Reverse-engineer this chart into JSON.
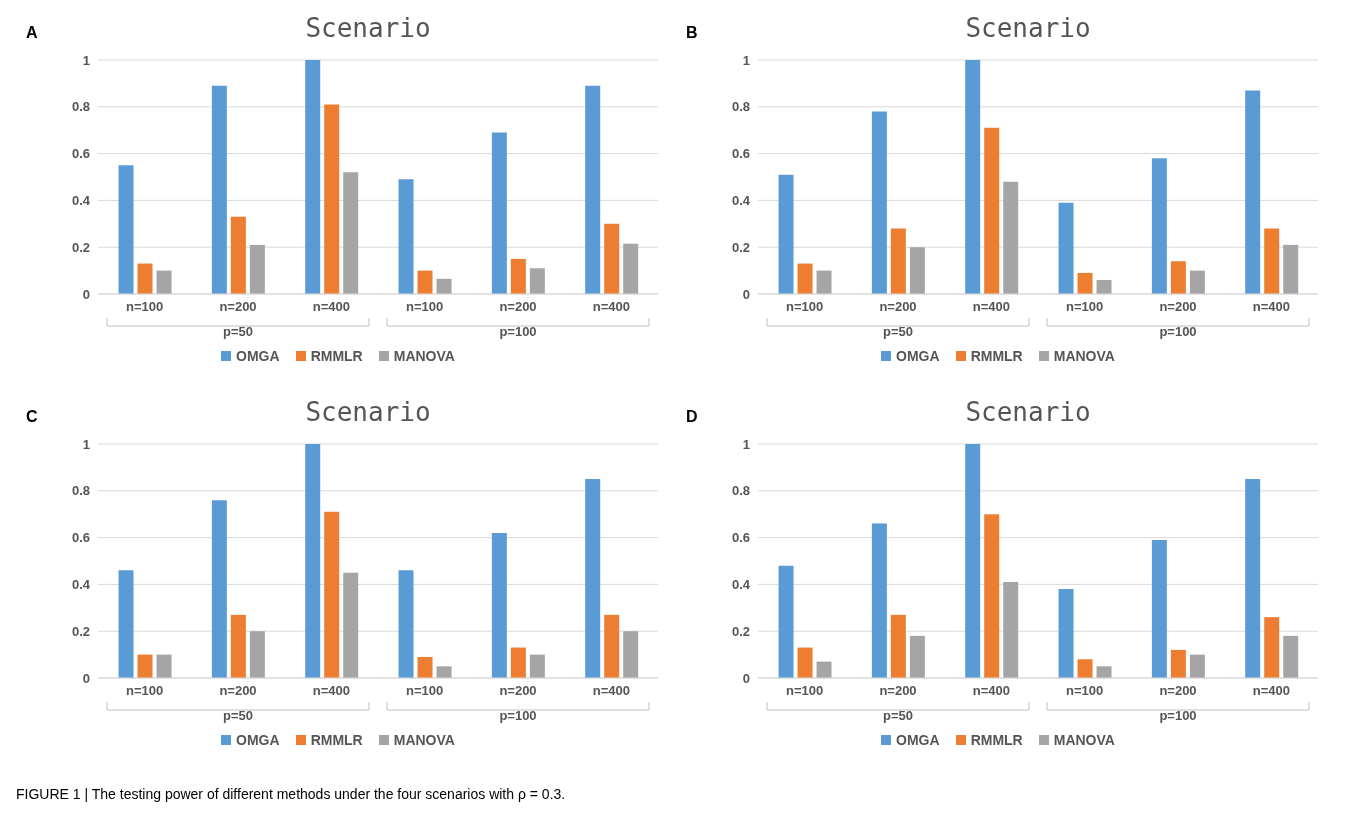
{
  "chart_data": [
    {
      "type": "bar",
      "title": "Scenario",
      "categories": [
        "n=100",
        "n=200",
        "n=400",
        "n=100",
        "n=200",
        "n=400"
      ],
      "ylim": [
        0,
        1
      ],
      "yticks": [
        0,
        0.2,
        0.4,
        0.6,
        0.8,
        1
      ],
      "grid": "y",
      "legend": "bottom",
      "annotations": [
        "A",
        "p=50",
        "p=100"
      ],
      "series": [
        {
          "name": "OMGA",
          "color": "#5b9bd5",
          "values": [
            0.55,
            0.89,
            1.0,
            0.49,
            0.69,
            0.89
          ]
        },
        {
          "name": "RMMLR",
          "color": "#ed7d31",
          "values": [
            0.13,
            0.33,
            0.81,
            0.1,
            0.15,
            0.3
          ]
        },
        {
          "name": "MANOVA",
          "color": "#a5a5a5",
          "values": [
            0.1,
            0.21,
            0.52,
            0.065,
            0.11,
            0.215
          ]
        }
      ]
    },
    {
      "type": "bar",
      "title": "Scenario",
      "categories": [
        "n=100",
        "n=200",
        "n=400",
        "n=100",
        "n=200",
        "n=400"
      ],
      "ylim": [
        0,
        1
      ],
      "yticks": [
        0,
        0.2,
        0.4,
        0.6,
        0.8,
        1
      ],
      "grid": "y",
      "legend": "bottom",
      "annotations": [
        "B",
        "p=50",
        "p=100"
      ],
      "series": [
        {
          "name": "OMGA",
          "color": "#5b9bd5",
          "values": [
            0.51,
            0.78,
            1.0,
            0.39,
            0.58,
            0.87
          ]
        },
        {
          "name": "RMMLR",
          "color": "#ed7d31",
          "values": [
            0.13,
            0.28,
            0.71,
            0.09,
            0.14,
            0.28
          ]
        },
        {
          "name": "MANOVA",
          "color": "#a5a5a5",
          "values": [
            0.1,
            0.2,
            0.48,
            0.06,
            0.1,
            0.21
          ]
        }
      ]
    },
    {
      "type": "bar",
      "title": "Scenario",
      "categories": [
        "n=100",
        "n=200",
        "n=400",
        "n=100",
        "n=200",
        "n=400"
      ],
      "ylim": [
        0,
        1
      ],
      "yticks": [
        0,
        0.2,
        0.4,
        0.6,
        0.8,
        1
      ],
      "grid": "y",
      "legend": "bottom",
      "annotations": [
        "C",
        "p=50",
        "p=100"
      ],
      "series": [
        {
          "name": "OMGA",
          "color": "#5b9bd5",
          "values": [
            0.46,
            0.76,
            1.0,
            0.46,
            0.62,
            0.85
          ]
        },
        {
          "name": "RMMLR",
          "color": "#ed7d31",
          "values": [
            0.1,
            0.27,
            0.71,
            0.09,
            0.13,
            0.27
          ]
        },
        {
          "name": "MANOVA",
          "color": "#a5a5a5",
          "values": [
            0.1,
            0.2,
            0.45,
            0.05,
            0.1,
            0.2
          ]
        }
      ]
    },
    {
      "type": "bar",
      "title": "Scenario",
      "categories": [
        "n=100",
        "n=200",
        "n=400",
        "n=100",
        "n=200",
        "n=400"
      ],
      "ylim": [
        0,
        1
      ],
      "yticks": [
        0,
        0.2,
        0.4,
        0.6,
        0.8,
        1
      ],
      "grid": "y",
      "legend": "bottom",
      "annotations": [
        "D",
        "p=50",
        "p=100",
        "FIGURE 1 | The testing power of different methods under the four scenarios with ρ = 0.3."
      ],
      "series": [
        {
          "name": "OMGA",
          "color": "#5b9bd5",
          "values": [
            0.48,
            0.66,
            1.0,
            0.38,
            0.59,
            0.85
          ]
        },
        {
          "name": "RMMLR",
          "color": "#ed7d31",
          "values": [
            0.13,
            0.27,
            0.7,
            0.08,
            0.12,
            0.26
          ]
        },
        {
          "name": "MANOVA",
          "color": "#a5a5a5",
          "values": [
            0.07,
            0.18,
            0.41,
            0.05,
            0.1,
            0.18
          ]
        }
      ]
    }
  ]
}
